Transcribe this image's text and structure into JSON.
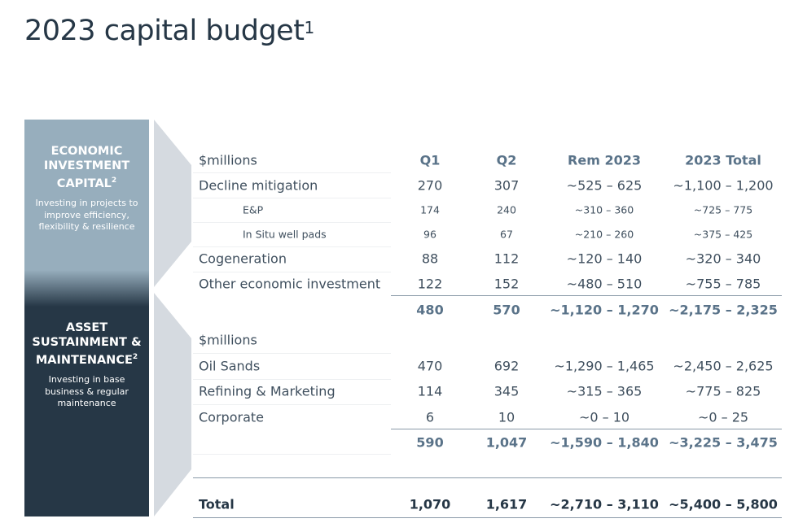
{
  "title": "2023 capital budget",
  "title_footnote": "1",
  "panels": [
    {
      "title": "ECONOMIC INVESTMENT CAPITAL",
      "footnote": "2",
      "description": "Investing in projects to improve efficiency, flexibility & resilience"
    },
    {
      "title": "ASSET SUSTAINMENT & MAINTENANCE",
      "footnote": "2",
      "description": "Investing in base business & regular maintenance"
    }
  ],
  "columns": [
    "Q1",
    "Q2",
    "Rem 2023",
    "2023 Total"
  ],
  "section1": {
    "unit": "$millions",
    "rows": [
      {
        "label": "Decline mitigation",
        "values": [
          "270",
          "307",
          "~525 – 625",
          "~1,100 – 1,200"
        ]
      },
      {
        "label": "E&P",
        "values": [
          "174",
          "240",
          "~310 – 360",
          "~725 – 775"
        ]
      },
      {
        "label": "In Situ well pads",
        "values": [
          "96",
          "67",
          "~210 – 260",
          "~375 – 425"
        ]
      },
      {
        "label": "Cogeneration",
        "values": [
          "88",
          "112",
          "~120 – 140",
          "~320 – 340"
        ]
      },
      {
        "label": "Other economic investment",
        "values": [
          "122",
          "152",
          "~480 – 510",
          "~755 – 785"
        ]
      }
    ],
    "subtotal": [
      "480",
      "570",
      "~1,120 – 1,270",
      "~2,175 – 2,325"
    ]
  },
  "section2": {
    "unit": "$millions",
    "rows": [
      {
        "label": "Oil Sands",
        "values": [
          "470",
          "692",
          "~1,290 – 1,465",
          "~2,450 – 2,625"
        ]
      },
      {
        "label": "Refining & Marketing",
        "values": [
          "114",
          "345",
          "~315 – 365",
          "~775 – 825"
        ]
      },
      {
        "label": "Corporate",
        "values": [
          "6",
          "10",
          "~0 – 10",
          "~0 – 25"
        ]
      }
    ],
    "subtotal": [
      "590",
      "1,047",
      "~1,590 – 1,840",
      "~3,225 – 3,475"
    ]
  },
  "total": {
    "label": "Total",
    "values": [
      "1,070",
      "1,617",
      "~2,710 – 3,110",
      "~5,400 – 5,800"
    ]
  },
  "colors": {
    "panel_light": "#97aebd",
    "panel_dark": "#263746",
    "chevron": "#d5dae0",
    "subtotal_text": "#5a7389"
  }
}
